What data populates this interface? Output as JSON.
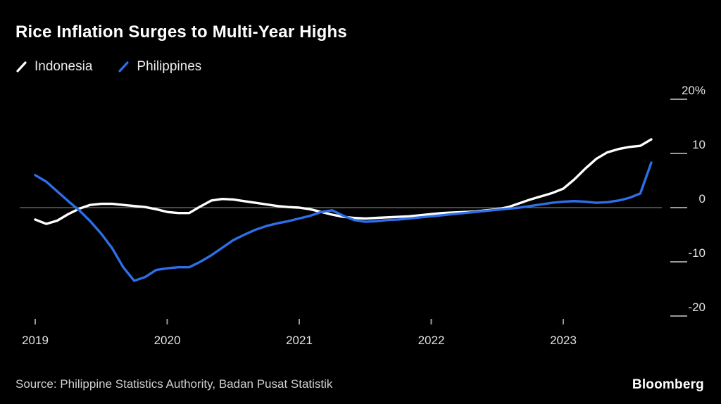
{
  "title": "Rice Inflation Surges to Multi-Year Highs",
  "legend": [
    {
      "label": "Indonesia",
      "color": "#ffffff"
    },
    {
      "label": "Philippines",
      "color": "#2e6fe8"
    }
  ],
  "source": "Source: Philippine Statistics Authority, Badan Pusat Statistik",
  "brand": "Bloomberg",
  "colors": {
    "background": "#000000",
    "zero_line": "#8f8f8f",
    "tick": "#9a9a9a",
    "label": "#e2e2e2"
  },
  "chart_data": {
    "type": "line",
    "title": "Rice Inflation Surges to Multi-Year Highs",
    "x_unit": "monthly",
    "x_start": {
      "year": 2019,
      "month": 1
    },
    "x_tick_labels": [
      "2019",
      "2020",
      "2021",
      "2022",
      "2023"
    ],
    "y_ticks": [
      20,
      10,
      0,
      -10,
      -20
    ],
    "y_tick_labels": [
      "20%",
      "10",
      "0",
      "-10",
      "-20"
    ],
    "ylim": [
      -22,
      22
    ],
    "grid": "zero-line-only",
    "legend_position": "top-left",
    "series": [
      {
        "name": "Indonesia",
        "color": "#ffffff",
        "values": [
          -2.2,
          -3.0,
          -2.4,
          -1.2,
          -0.2,
          0.5,
          0.7,
          0.7,
          0.5,
          0.3,
          0.1,
          -0.3,
          -0.8,
          -1.0,
          -1.0,
          0.2,
          1.3,
          1.6,
          1.5,
          1.2,
          0.9,
          0.6,
          0.3,
          0.1,
          0.0,
          -0.3,
          -0.8,
          -1.3,
          -1.7,
          -1.9,
          -2.0,
          -1.9,
          -1.8,
          -1.7,
          -1.6,
          -1.4,
          -1.2,
          -1.0,
          -0.9,
          -0.8,
          -0.7,
          -0.5,
          -0.3,
          0.1,
          0.8,
          1.5,
          2.1,
          2.7,
          3.5,
          5.2,
          7.2,
          9.0,
          10.2,
          10.8,
          11.2,
          11.4,
          12.6
        ]
      },
      {
        "name": "Philippines",
        "color": "#2e6fe8",
        "values": [
          6.0,
          4.8,
          3.0,
          1.2,
          -0.5,
          -2.5,
          -4.8,
          -7.5,
          -11.0,
          -13.5,
          -12.8,
          -11.5,
          -11.2,
          -11.0,
          -11.0,
          -10.0,
          -8.8,
          -7.4,
          -6.0,
          -5.0,
          -4.1,
          -3.4,
          -2.9,
          -2.5,
          -2.0,
          -1.5,
          -0.8,
          -0.5,
          -1.5,
          -2.3,
          -2.6,
          -2.5,
          -2.3,
          -2.2,
          -2.0,
          -1.8,
          -1.6,
          -1.4,
          -1.2,
          -1.0,
          -0.8,
          -0.6,
          -0.4,
          -0.2,
          0.0,
          0.3,
          0.6,
          0.9,
          1.1,
          1.2,
          1.1,
          0.9,
          1.0,
          1.3,
          1.8,
          2.6,
          8.3
        ]
      }
    ]
  }
}
